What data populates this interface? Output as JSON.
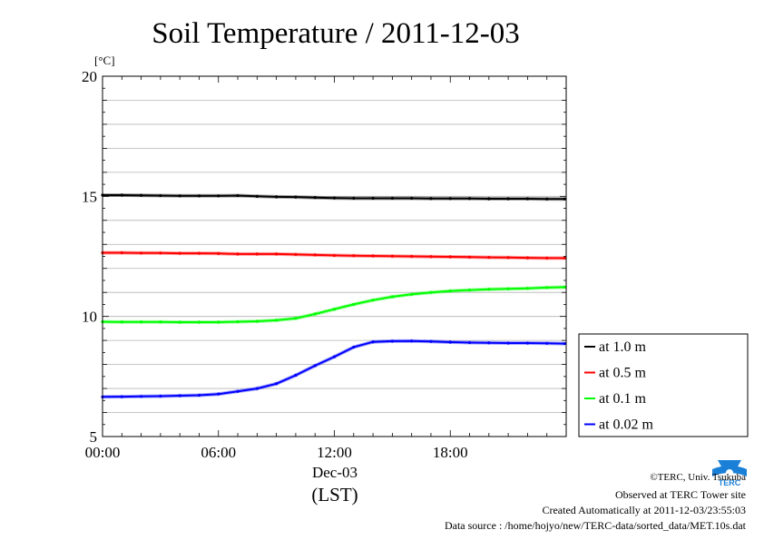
{
  "chart_data": {
    "type": "line",
    "title": "Soil Temperature / 2011-12-03",
    "ylabel": "[°C]",
    "xlabel": "Dec-03",
    "xlabel_sub": "(LST)",
    "ylim": [
      5,
      20
    ],
    "xlim": [
      "00:00",
      "24:00"
    ],
    "yticks": [
      "5",
      "10",
      "15",
      "20"
    ],
    "xticks": [
      "00:00",
      "06:00",
      "12:00",
      "18:00"
    ],
    "grid": true,
    "legend_position": "right",
    "x": [
      "00:00",
      "01:00",
      "02:00",
      "03:00",
      "04:00",
      "05:00",
      "06:00",
      "07:00",
      "08:00",
      "09:00",
      "10:00",
      "11:00",
      "12:00",
      "13:00",
      "14:00",
      "15:00",
      "16:00",
      "17:00",
      "18:00",
      "19:00",
      "20:00",
      "21:00",
      "22:00",
      "23:00",
      "23:55"
    ],
    "series": [
      {
        "name": "at 1.0 m",
        "color": "#000000",
        "values": [
          15.05,
          15.05,
          15.04,
          15.03,
          15.02,
          15.02,
          15.02,
          15.03,
          15.0,
          14.98,
          14.97,
          14.95,
          14.93,
          14.92,
          14.92,
          14.92,
          14.92,
          14.91,
          14.91,
          14.91,
          14.9,
          14.9,
          14.9,
          14.89,
          14.89
        ]
      },
      {
        "name": "at 0.5 m",
        "color": "#ff0000",
        "values": [
          12.65,
          12.65,
          12.64,
          12.64,
          12.63,
          12.63,
          12.62,
          12.6,
          12.6,
          12.6,
          12.58,
          12.56,
          12.54,
          12.53,
          12.52,
          12.51,
          12.5,
          12.49,
          12.48,
          12.47,
          12.46,
          12.45,
          12.44,
          12.43,
          12.43
        ]
      },
      {
        "name": "at 0.1 m",
        "color": "#00ff00",
        "values": [
          9.78,
          9.77,
          9.77,
          9.77,
          9.76,
          9.76,
          9.76,
          9.78,
          9.8,
          9.84,
          9.92,
          10.1,
          10.3,
          10.5,
          10.68,
          10.82,
          10.92,
          11.0,
          11.06,
          11.1,
          11.13,
          11.15,
          11.17,
          11.2,
          11.22
        ]
      },
      {
        "name": "at 0.02 m",
        "color": "#0000ff",
        "values": [
          6.65,
          6.66,
          6.67,
          6.68,
          6.7,
          6.72,
          6.77,
          6.88,
          7.0,
          7.2,
          7.55,
          7.95,
          8.32,
          8.72,
          8.94,
          8.97,
          8.98,
          8.96,
          8.93,
          8.91,
          8.9,
          8.89,
          8.89,
          8.88,
          8.87
        ]
      }
    ]
  },
  "footer": {
    "copyright": "©TERC, Univ. Tsukuba",
    "observed": "Observed at TERC Tower site",
    "created": "Created Automatically at 2011-12-03/23:55:03",
    "source": "Data source : /home/hojyo/new/TERC-data/sorted_data/MET.10s.dat"
  },
  "logo": {
    "text": "TERC",
    "color": "#1a7fd6"
  }
}
